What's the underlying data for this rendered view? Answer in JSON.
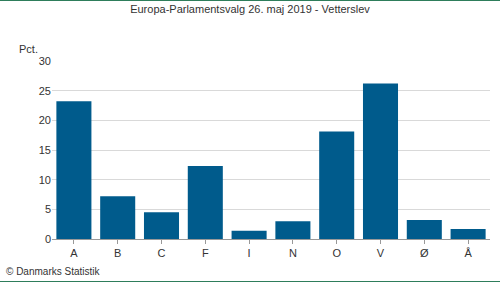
{
  "chart_data": {
    "type": "bar",
    "title": "Europa-Parlamentsvalg 26. maj 2019 - Vetterslev",
    "ylabel": "Pct.",
    "source": "© Danmarks Statistik",
    "categories": [
      "A",
      "B",
      "C",
      "F",
      "I",
      "N",
      "O",
      "V",
      "Ø",
      "Å"
    ],
    "values": [
      23.2,
      7.2,
      4.5,
      12.3,
      1.4,
      3.0,
      18.1,
      26.2,
      3.2,
      1.7
    ],
    "color": "#005b8c",
    "ylim": [
      0,
      30
    ],
    "yticks": [
      0,
      5,
      10,
      15,
      20,
      25,
      30
    ],
    "grid": true
  }
}
